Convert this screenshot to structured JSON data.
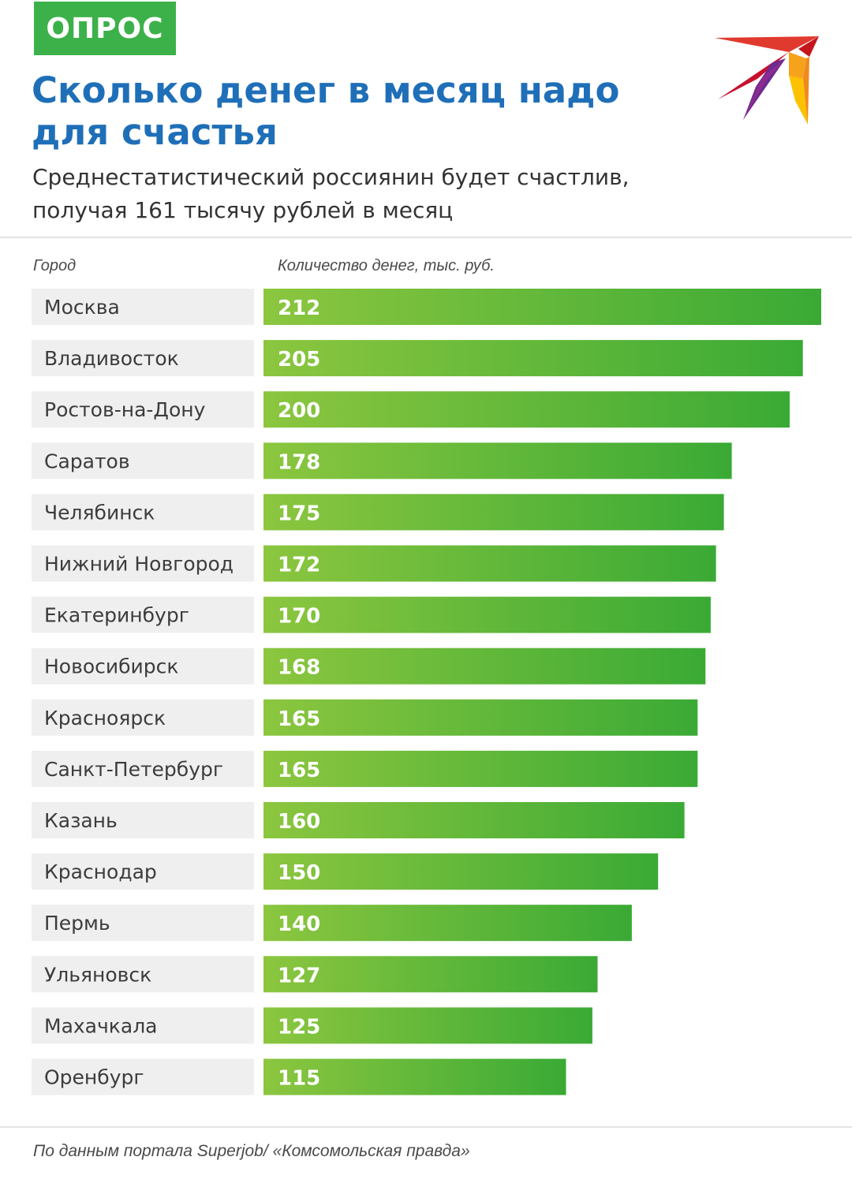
{
  "badge": "ОПРОС",
  "title_lines": [
    "Сколько денег в месяц надо",
    "для счастья"
  ],
  "subtitle_lines": [
    "Среднестатистический россиянин будет счастлив,",
    "получая 161 тысячу рублей в месяц"
  ],
  "col_city": "Город",
  "col_amount": "Количество денег, тыс. руб.",
  "footer": "По данным портала Superjob/ «Комсомольская правда»",
  "colors": {
    "badge": "#3cb14a",
    "title": "#1f6fb8",
    "bar_light": "#8cc63f",
    "bar_dark": "#3aaa35",
    "label_bg": "#efeff0"
  },
  "chart_data": {
    "type": "bar",
    "orientation": "horizontal",
    "categories": [
      "Москва",
      "Владивосток",
      "Ростов-на-Дону",
      "Саратов",
      "Челябинск",
      "Нижний Новгород",
      "Екатеринбург",
      "Новосибирск",
      "Красноярск",
      "Санкт-Петербург",
      "Казань",
      "Краснодар",
      "Пермь",
      "Ульяновск",
      "Махачкала",
      "Оренбург"
    ],
    "values": [
      212,
      205,
      200,
      178,
      175,
      172,
      170,
      168,
      165,
      165,
      160,
      150,
      140,
      127,
      125,
      115
    ],
    "xlabel": "Количество денег, тыс. руб.",
    "ylabel": "Город",
    "grid": false
  }
}
